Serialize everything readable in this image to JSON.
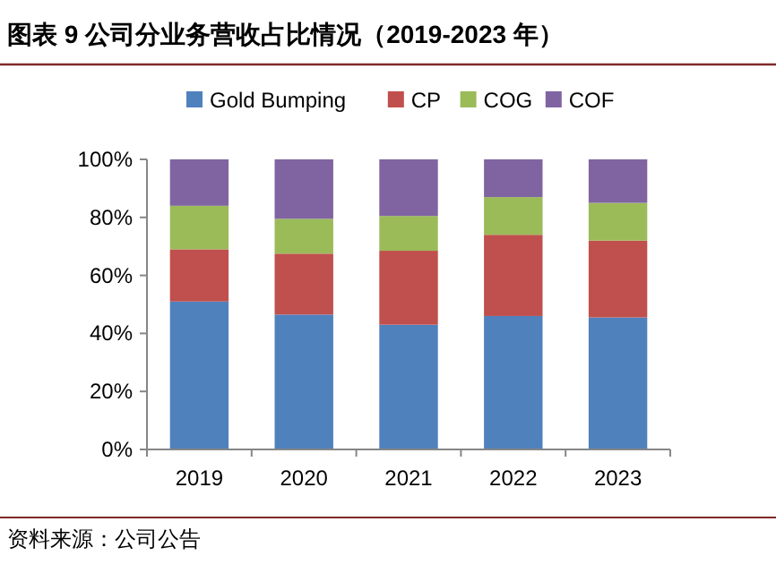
{
  "chart_data": {
    "type": "bar",
    "stacked": true,
    "title": "图表 9 公司分业务营收占比情况（2019-2023 年）",
    "categories": [
      "2019",
      "2020",
      "2021",
      "2022",
      "2023"
    ],
    "series": [
      {
        "name": "Gold Bumping",
        "color": "#4f81bd",
        "values": [
          51,
          46.5,
          43,
          46,
          45.5
        ]
      },
      {
        "name": "CP",
        "color": "#c0504d",
        "values": [
          18,
          21,
          25.5,
          28,
          26.5
        ]
      },
      {
        "name": "COG",
        "color": "#9bbb59",
        "values": [
          15,
          12,
          12,
          13,
          13
        ]
      },
      {
        "name": "COF",
        "color": "#8064a2",
        "values": [
          16,
          20.5,
          19.5,
          13,
          15
        ]
      }
    ],
    "ylim": [
      0,
      100
    ],
    "yticks": [
      {
        "value": 0,
        "label": "0%"
      },
      {
        "value": 20,
        "label": "20%"
      },
      {
        "value": 40,
        "label": "40%"
      },
      {
        "value": 60,
        "label": "60%"
      },
      {
        "value": 80,
        "label": "80%"
      },
      {
        "value": 100,
        "label": "100%"
      }
    ],
    "grid": false,
    "legend": "top",
    "annotations": [
      "资料来源：公司公告"
    ]
  }
}
